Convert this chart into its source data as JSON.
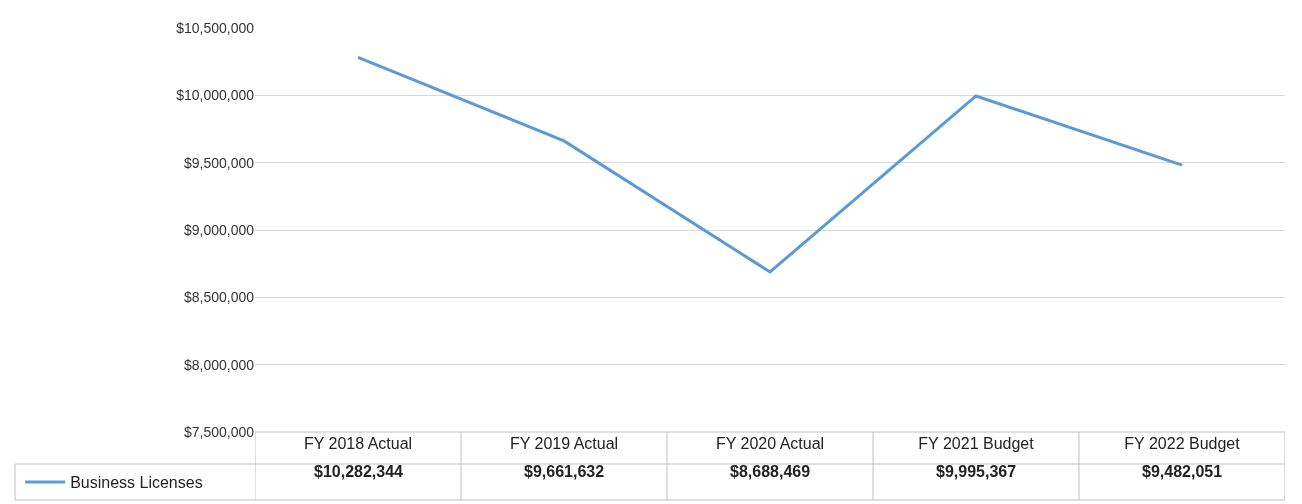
{
  "chart_data": {
    "type": "line",
    "categories": [
      "FY 2018 Actual",
      "FY 2019 Actual",
      "FY 2020 Actual",
      "FY 2021 Budget",
      "FY 2022 Budget"
    ],
    "series": [
      {
        "name": "Business Licenses",
        "color": "#5b9bd5",
        "values": [
          10282344,
          9661632,
          8688469,
          9995367,
          9482051
        ],
        "value_labels": [
          "$10,282,344",
          "$9,661,632",
          "$8,688,469",
          "$9,995,367",
          "$9,482,051"
        ]
      }
    ],
    "ylim": [
      7500000,
      10500000
    ],
    "yticks": [
      {
        "value": 7500000,
        "label": "$7,500,000"
      },
      {
        "value": 8000000,
        "label": "$8,000,000"
      },
      {
        "value": 8500000,
        "label": "$8,500,000"
      },
      {
        "value": 9000000,
        "label": "$9,000,000"
      },
      {
        "value": 9500000,
        "label": "$9,500,000"
      },
      {
        "value": 10000000,
        "label": "$10,000,000"
      },
      {
        "value": 10500000,
        "label": "$10,500,000"
      }
    ],
    "grid": "y",
    "legend": "bottom left",
    "marker": "none",
    "line_style": "solid"
  }
}
